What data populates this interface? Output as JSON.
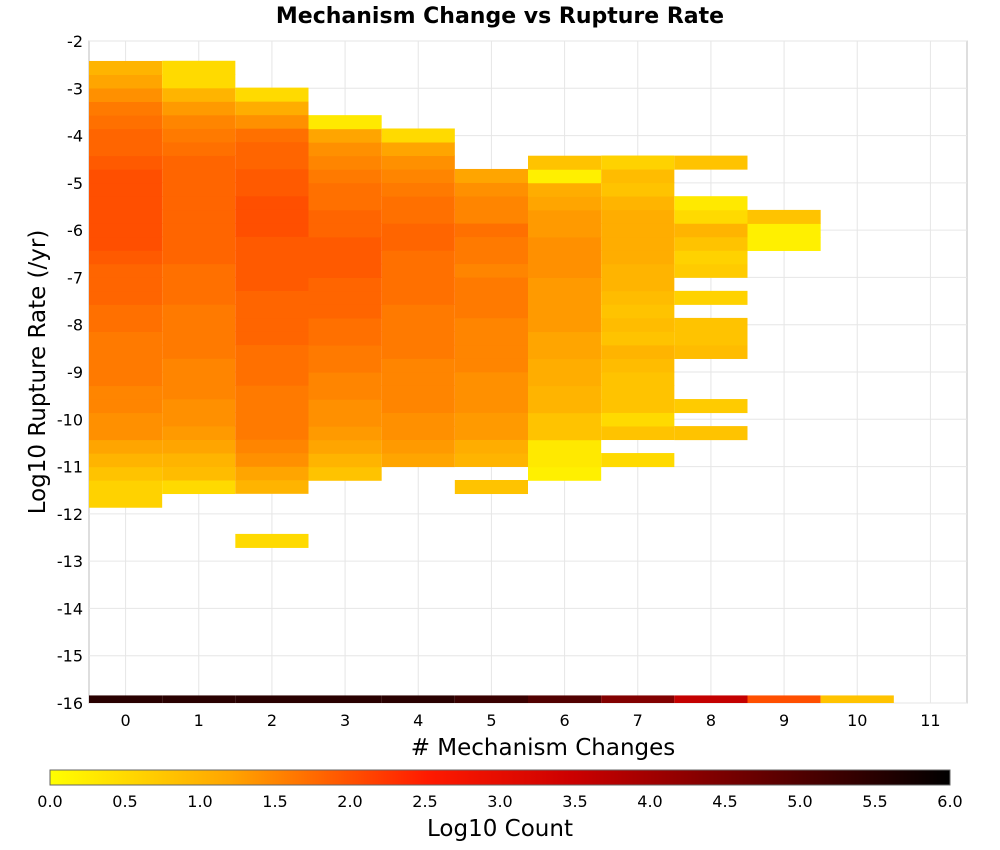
{
  "chart_data": {
    "type": "heatmap",
    "title": "Mechanism Change vs Rupture Rate",
    "xlabel": "# Mechanism Changes",
    "ylabel": "Log10 Rupture Rate (/yr)",
    "x_ticks": [
      "0",
      "1",
      "2",
      "3",
      "4",
      "5",
      "6",
      "7",
      "8",
      "9",
      "10",
      "11"
    ],
    "y_ticks": [
      "-2",
      "-3",
      "-4",
      "-5",
      "-6",
      "-7",
      "-8",
      "-9",
      "-10",
      "-11",
      "-12",
      "-13",
      "-14",
      "-15",
      "-16"
    ],
    "xlim": [
      -0.5,
      11.5
    ],
    "ylim": [
      -16,
      -2
    ],
    "y_bin_width": 0.286,
    "colorbar": {
      "label": "Log10 Count",
      "range": [
        0,
        6
      ],
      "ticks": [
        "0.0",
        "0.5",
        "1.0",
        "1.5",
        "2.0",
        "2.5",
        "3.0",
        "3.5",
        "4.0",
        "4.5",
        "5.0",
        "5.5",
        "6.0"
      ],
      "colors": [
        "#ffff00",
        "#ffa500",
        "#ff1a00",
        "#cc0000",
        "#6a0000",
        "#000000"
      ]
    },
    "grid": true,
    "series": [
      {
        "x": 0,
        "y_start": -11.86,
        "values": [
          0.6,
          0.6,
          0.8,
          1.0,
          1.2,
          1.4,
          1.4,
          1.5,
          1.5,
          1.6,
          1.6,
          1.6,
          1.6,
          1.7,
          1.7,
          1.8,
          1.8,
          1.8,
          1.9,
          2.0,
          2.0,
          2.0,
          2.0,
          2.0,
          2.0,
          1.9,
          1.8,
          1.8,
          1.7,
          1.6,
          1.4,
          1.2,
          1.0
        ]
      },
      {
        "x": 1,
        "y_start": -11.57,
        "values": [
          0.5,
          0.9,
          1.0,
          1.2,
          1.3,
          1.4,
          1.4,
          1.5,
          1.5,
          1.5,
          1.6,
          1.6,
          1.6,
          1.6,
          1.7,
          1.7,
          1.7,
          1.8,
          1.8,
          1.8,
          1.8,
          1.8,
          1.8,
          1.8,
          1.8,
          1.7,
          1.6,
          1.5,
          1.3,
          1.0,
          0.5,
          0.5
        ]
      },
      {
        "x": 2,
        "y_start": -12.71,
        "values": [
          0.5,
          null,
          null,
          null,
          1.0,
          1.2,
          1.4,
          1.5,
          1.6,
          1.6,
          1.6,
          1.6,
          1.7,
          1.7,
          1.7,
          1.8,
          1.8,
          1.8,
          1.8,
          1.9,
          1.9,
          1.9,
          1.9,
          2.0,
          2.0,
          2.0,
          1.9,
          1.9,
          1.8,
          1.8,
          1.7,
          1.4,
          1.1,
          0.5
        ]
      },
      {
        "x": 3,
        "y_start": -11.29,
        "values": [
          0.8,
          1.0,
          1.2,
          1.3,
          1.4,
          1.4,
          1.5,
          1.5,
          1.6,
          1.6,
          1.7,
          1.7,
          1.8,
          1.8,
          1.8,
          1.9,
          1.9,
          1.9,
          1.8,
          1.8,
          1.7,
          1.7,
          1.6,
          1.5,
          1.4,
          1.2,
          0.3
        ]
      },
      {
        "x": 4,
        "y_start": -11.0,
        "values": [
          1.2,
          1.3,
          1.4,
          1.4,
          1.5,
          1.5,
          1.5,
          1.5,
          1.6,
          1.6,
          1.6,
          1.6,
          1.7,
          1.7,
          1.7,
          1.7,
          1.8,
          1.8,
          1.7,
          1.7,
          1.6,
          1.5,
          1.4,
          1.2,
          0.5
        ]
      },
      {
        "x": 5,
        "y_start": -11.57,
        "values": [
          0.8,
          null,
          1.0,
          1.1,
          1.3,
          1.3,
          1.4,
          1.4,
          1.4,
          1.5,
          1.5,
          1.5,
          1.5,
          1.6,
          1.6,
          1.6,
          1.5,
          1.6,
          1.6,
          1.7,
          1.5,
          1.5,
          1.4,
          1.2
        ]
      },
      {
        "x": 6,
        "y_start": -11.29,
        "values": [
          0.2,
          0.3,
          0.3,
          0.8,
          0.8,
          1.0,
          1.0,
          1.1,
          1.1,
          1.2,
          1.2,
          1.3,
          1.3,
          1.3,
          1.3,
          1.4,
          1.4,
          1.4,
          1.3,
          1.3,
          1.2,
          1.1,
          0.2,
          0.8
        ]
      },
      {
        "x": 7,
        "y_start": -11.0,
        "values": [
          0.5,
          null,
          0.8,
          0.5,
          0.8,
          0.8,
          0.8,
          0.9,
          1.0,
          0.8,
          0.9,
          0.8,
          0.9,
          1.0,
          1.0,
          1.1,
          1.1,
          1.1,
          1.1,
          1.0,
          0.8,
          0.9,
          0.6
        ]
      },
      {
        "x": 8,
        "y_start": -10.43,
        "values": [
          0.8,
          null,
          0.7,
          null,
          null,
          null,
          0.9,
          0.8,
          0.8,
          null,
          0.6,
          null,
          0.7,
          0.6,
          0.8,
          1.0,
          0.5,
          0.3,
          null,
          null,
          0.8
        ]
      },
      {
        "x": 9,
        "y_start": -6.43,
        "values": [
          0.2,
          0.2,
          0.8
        ]
      },
      {
        "x": -0.5,
        "y_start": -16.0,
        "values": []
      }
    ],
    "bottom_row": {
      "y": -16,
      "values": [
        5.5,
        5.5,
        5.5,
        5.5,
        5.5,
        5.3,
        5.0,
        4.4,
        3.6,
        2.0,
        0.8,
        null
      ]
    }
  }
}
